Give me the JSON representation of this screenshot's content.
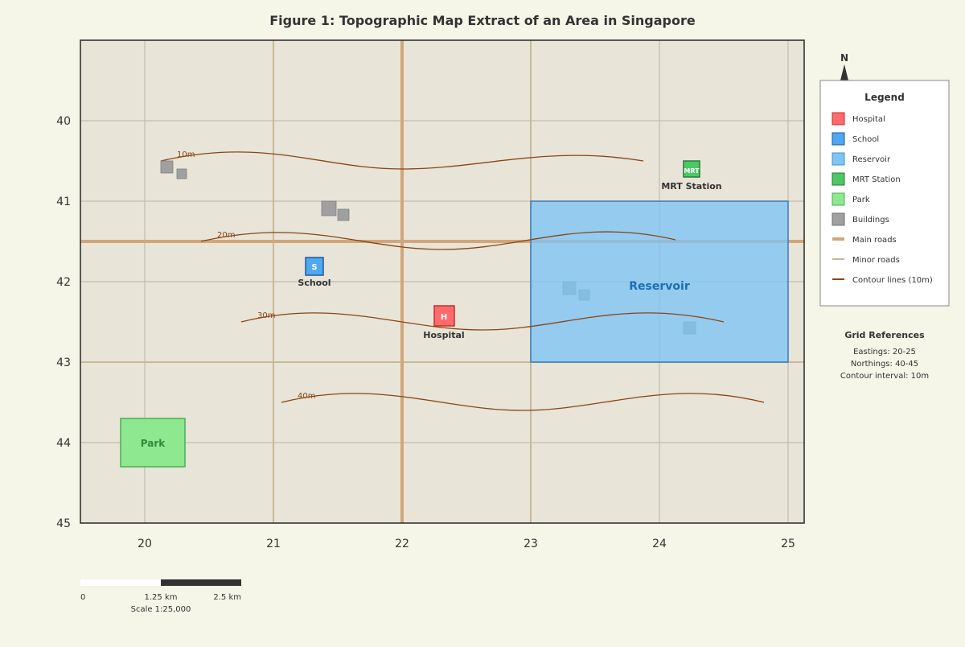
{
  "title": "Figure 1: Topographic Map Extract of an Area in Singapore",
  "colors": {
    "page_bg": "#f5f5e8",
    "map_bg": "#e8e4d8",
    "main_road": "#d2a679",
    "minor_road": "#c8b898",
    "grid": "#c0bcb0",
    "contour": "#8b4513",
    "hospital": "#ff6b6b",
    "school": "#4fa8f0",
    "reservoir": "#7ec4f5",
    "mrt": "#4cc864",
    "park": "#8ee890",
    "building": "#a0a0a0"
  },
  "grid": {
    "eastings": [
      "20",
      "21",
      "22",
      "23",
      "24",
      "25"
    ],
    "northings": [
      "40",
      "41",
      "42",
      "43",
      "44",
      "45"
    ]
  },
  "contours": [
    {
      "label": "10m"
    },
    {
      "label": "20m"
    },
    {
      "label": "30m"
    },
    {
      "label": "40m"
    }
  ],
  "features": {
    "hospital": {
      "symbol": "H",
      "label": "Hospital"
    },
    "school": {
      "symbol": "S",
      "label": "School"
    },
    "mrt": {
      "symbol": "MRT",
      "label": "MRT Station"
    },
    "reservoir": {
      "label": "Reservoir"
    },
    "park": {
      "label": "Park"
    }
  },
  "north_label": "N",
  "legend": {
    "title": "Legend",
    "items": [
      {
        "label": "Hospital",
        "type": "box",
        "color": "#ff6b6b",
        "stroke": "#c03030"
      },
      {
        "label": "School",
        "type": "box",
        "color": "#4fa8f0",
        "stroke": "#1f5a9c"
      },
      {
        "label": "Reservoir",
        "type": "box",
        "color": "#7ec4f5",
        "stroke": "#4a8fc0"
      },
      {
        "label": "MRT Station",
        "type": "box",
        "color": "#4cc864",
        "stroke": "#2a7a3a"
      },
      {
        "label": "Park",
        "type": "box",
        "color": "#8ee890",
        "stroke": "#4caf50"
      },
      {
        "label": "Buildings",
        "type": "box",
        "color": "#a0a0a0",
        "stroke": "#707070"
      },
      {
        "label": "Main roads",
        "type": "line",
        "color": "#d2a679"
      },
      {
        "label": "Minor roads",
        "type": "line",
        "color": "#c8b898"
      },
      {
        "label": "Contour lines (10m)",
        "type": "line",
        "color": "#8b4513"
      }
    ]
  },
  "grid_refs": {
    "title": "Grid References",
    "eastings": "Eastings: 20-25",
    "northings": "Northings: 40-45",
    "contour": "Contour interval: 10m"
  },
  "scale": {
    "labels": [
      "0",
      "1.25 km",
      "2.5 km"
    ],
    "ratio": "Scale 1:25,000"
  }
}
